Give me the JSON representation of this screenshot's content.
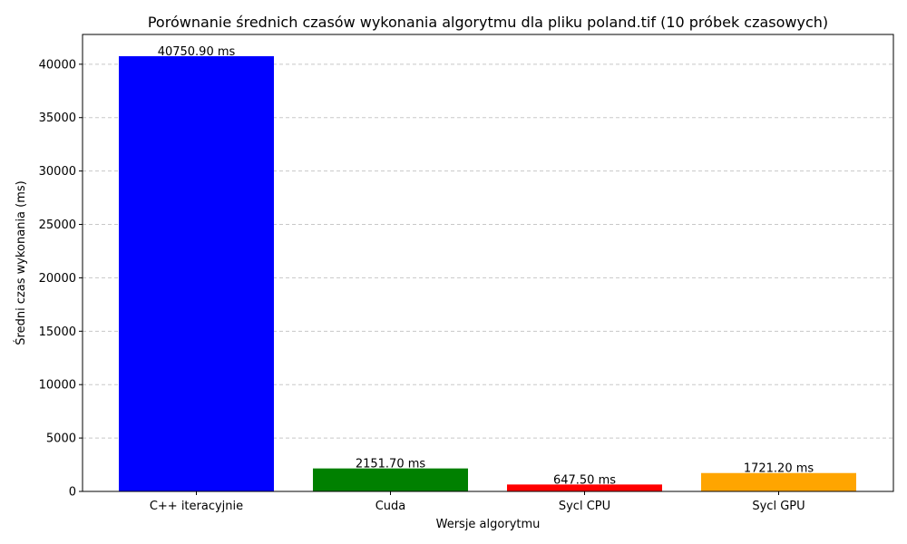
{
  "chart_data": {
    "type": "bar",
    "title": "Porównanie średnich czasów wykonania algorytmu dla pliku poland.tif (10 próbek czasowych)",
    "xlabel": "Wersje algorytmu",
    "ylabel": "Średni czas wykonania (ms)",
    "categories": [
      "C++ iteracyjnie",
      "Cuda",
      "Sycl CPU",
      "Sycl GPU"
    ],
    "values": [
      40750.9,
      2151.7,
      647.5,
      1721.2
    ],
    "data_labels": [
      "40750.90 ms",
      "2151.70 ms",
      "647.50 ms",
      "1721.20 ms"
    ],
    "colors": [
      "#0000ff",
      "#008000",
      "#ff0000",
      "#ffa500"
    ],
    "ylim": [
      0,
      42788
    ],
    "yticks": [
      0,
      5000,
      10000,
      15000,
      20000,
      25000,
      30000,
      35000,
      40000
    ],
    "grid": {
      "axis": "y",
      "style": "dashed",
      "color": "#c8c8c8"
    }
  }
}
